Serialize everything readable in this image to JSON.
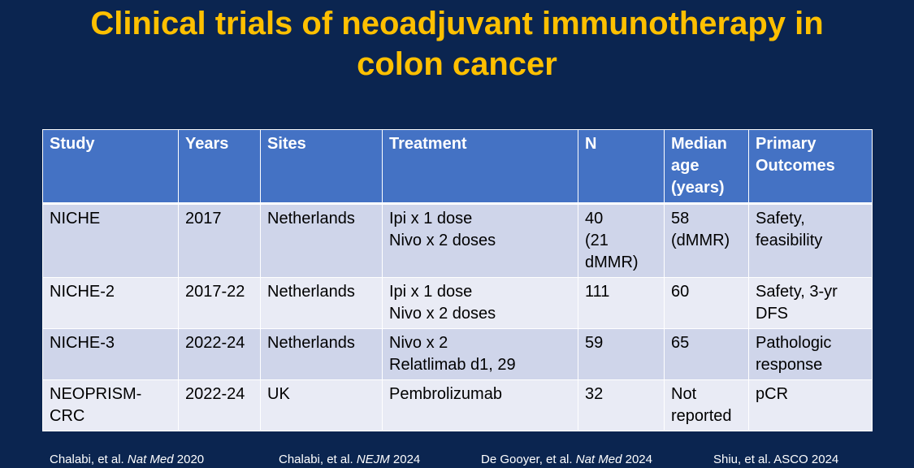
{
  "title": {
    "line1": "Clinical trials of neoadjuvant immunotherapy in",
    "line2": "colon cancer"
  },
  "colors": {
    "background": "#0b2550",
    "title": "#ffc000",
    "header_fill": "#4472c4",
    "row_fill_dark": "#cfd5ea",
    "row_fill_light": "#e9ebf5"
  },
  "table": {
    "headers": [
      "Study",
      "Years",
      "Sites",
      "Treatment",
      "N",
      "Median\nage\n(years)",
      "Primary\nOutcomes"
    ],
    "rows": [
      [
        "NICHE",
        "2017",
        "Netherlands",
        "Ipi x 1 dose\nNivo x 2 doses",
        "40\n(21\ndMMR)",
        "58\n(dMMR)",
        "Safety,\nfeasibility"
      ],
      [
        "NICHE-2",
        "2017-22",
        "Netherlands",
        "Ipi x 1 dose\nNivo x 2 doses",
        "111",
        "60",
        "Safety, 3-yr\nDFS"
      ],
      [
        "NICHE-3",
        "2022-24",
        "Netherlands",
        "Nivo x 2\nRelatlimab d1, 29",
        "59",
        "65",
        "Pathologic\nresponse"
      ],
      [
        "NEOPRISM-\nCRC",
        "2022-24",
        "UK",
        "Pembrolizumab",
        "32",
        "Not\nreported",
        "pCR"
      ]
    ]
  },
  "citations": [
    {
      "authors": "Chalabi, et al. ",
      "journal": "Nat Med",
      "year": " 2020"
    },
    {
      "authors": "Chalabi, et al. ",
      "journal": "NEJM",
      "year": " 2024"
    },
    {
      "authors": "De Gooyer, et al. ",
      "journal": "Nat Med",
      "year": " 2024"
    },
    {
      "authors": "Shiu, et al. ASCO 2024",
      "journal": "",
      "year": ""
    }
  ]
}
